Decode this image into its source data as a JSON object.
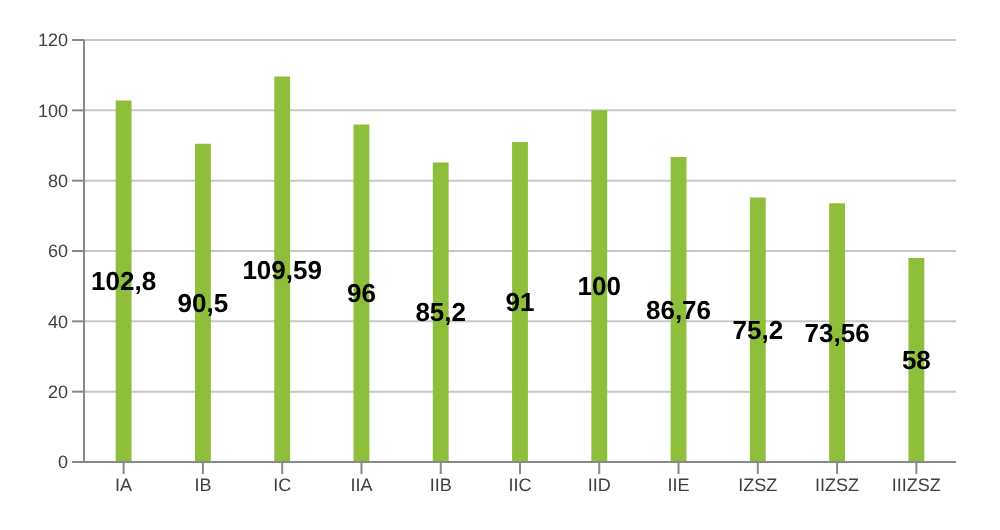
{
  "chart_data": {
    "type": "bar",
    "categories": [
      "IA",
      "IB",
      "IC",
      "IIA",
      "IIB",
      "IIC",
      "IID",
      "IIE",
      "IZSZ",
      "IIZSZ",
      "IIIZSZ"
    ],
    "values": [
      102.8,
      90.5,
      109.59,
      96,
      85.2,
      91,
      100,
      86.76,
      75.2,
      73.56,
      58
    ],
    "value_labels": [
      "102,8",
      "90,5",
      "109,59",
      "96",
      "85,2",
      "91",
      "100",
      "86,76",
      "75,2",
      "73,56",
      "58"
    ],
    "color": "#8fbf3a",
    "ylim": [
      0,
      120
    ],
    "yticks": [
      0,
      20,
      40,
      60,
      80,
      100,
      120
    ],
    "grid": "y"
  }
}
